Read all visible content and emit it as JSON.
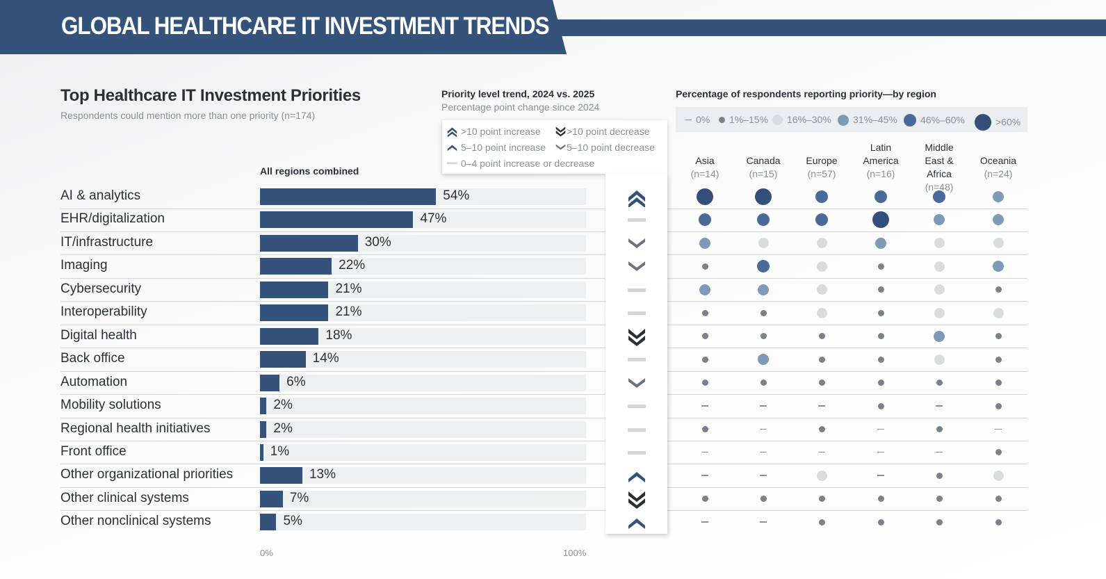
{
  "header": {
    "title": "GLOBAL HEALTHCARE IT INVESTMENT TRENDS"
  },
  "section": {
    "title": "Top Healthcare IT Investment Priorities",
    "subtitle": "Respondents could mention more than one priority (n=174)",
    "bar_header": "All regions combined"
  },
  "trend": {
    "title": "Priority level trend, 2024 vs. 2025",
    "subtitle": "Percentage point change since 2024",
    "legend": {
      "up2": ">10 point increase",
      "down2": ">10 point decrease",
      "up1": "5–10 point increase",
      "down1": "5–10 point decrease",
      "flat": "0–4 point increase or decrease"
    }
  },
  "region": {
    "title": "Percentage of respondents reporting priority—by region",
    "legend": [
      "0%",
      "1%–15%",
      "16%–30%",
      "31%–45%",
      "46%–60%",
      ">60%"
    ],
    "columns": [
      {
        "name": "Asia",
        "n": "(n=14)"
      },
      {
        "name": "Canada",
        "n": "(n=15)"
      },
      {
        "name": "Europe",
        "n": "(n=57)"
      },
      {
        "name": "Latin America",
        "n": "(n=16)"
      },
      {
        "name": "Middle East & Africa",
        "n": "(n=48)"
      },
      {
        "name": "Oceania",
        "n": "(n=24)"
      }
    ]
  },
  "colors": {
    "bar": "#34527a",
    "track": "#eeeff1",
    "up": "#34527a",
    "down2": "#2b2f36",
    "down1": "#6b7380",
    "flat": "#d3d5d8",
    "levels": [
      "#8a8f96",
      "#7a818b",
      "#d9dcdf",
      "#7f9ab8",
      "#4a6b9a",
      "#34507a"
    ]
  },
  "chart_data": {
    "type": "bar",
    "title": "Top Healthcare IT Investment Priorities",
    "xlabel": "",
    "ylabel": "",
    "xlim": [
      0,
      100
    ],
    "tick_labels": [
      "0%",
      "100%"
    ],
    "categories": [
      "AI & analytics",
      "EHR/digitalization",
      "IT/infrastructure",
      "Imaging",
      "Cybersecurity",
      "Interoperability",
      "Digital health",
      "Back office",
      "Automation",
      "Mobility solutions",
      "Regional health initiatives",
      "Front office",
      "Other organizational priorities",
      "Other clinical systems",
      "Other nonclinical systems"
    ],
    "values": [
      54,
      47,
      30,
      22,
      21,
      21,
      18,
      14,
      6,
      2,
      2,
      1,
      13,
      7,
      5
    ],
    "trend": [
      "up2",
      "flat",
      "down1",
      "down1",
      "flat",
      "flat",
      "down2",
      "flat",
      "down1",
      "flat",
      "flat",
      "flat",
      "up1",
      "down2",
      "up1"
    ],
    "region_level_key": "0=0%,1=1-15%,2=16-30%,3=31-45%,4=46-60%,5=>60%",
    "region_levels": [
      [
        5,
        5,
        4,
        4,
        4,
        3
      ],
      [
        4,
        4,
        4,
        5,
        3,
        3
      ],
      [
        3,
        2,
        2,
        3,
        2,
        2
      ],
      [
        1,
        4,
        2,
        1,
        2,
        3
      ],
      [
        3,
        3,
        2,
        1,
        2,
        1
      ],
      [
        1,
        1,
        2,
        1,
        2,
        2
      ],
      [
        1,
        1,
        1,
        1,
        3,
        1
      ],
      [
        1,
        3,
        1,
        1,
        2,
        1
      ],
      [
        1,
        1,
        1,
        1,
        1,
        1
      ],
      [
        0,
        0,
        0,
        1,
        0,
        1
      ],
      [
        1,
        0,
        1,
        0,
        1,
        0
      ],
      [
        0,
        0,
        0,
        0,
        0,
        1
      ],
      [
        0,
        0,
        2,
        0,
        1,
        2
      ],
      [
        1,
        1,
        1,
        1,
        1,
        1
      ],
      [
        0,
        0,
        1,
        1,
        1,
        1
      ]
    ]
  }
}
